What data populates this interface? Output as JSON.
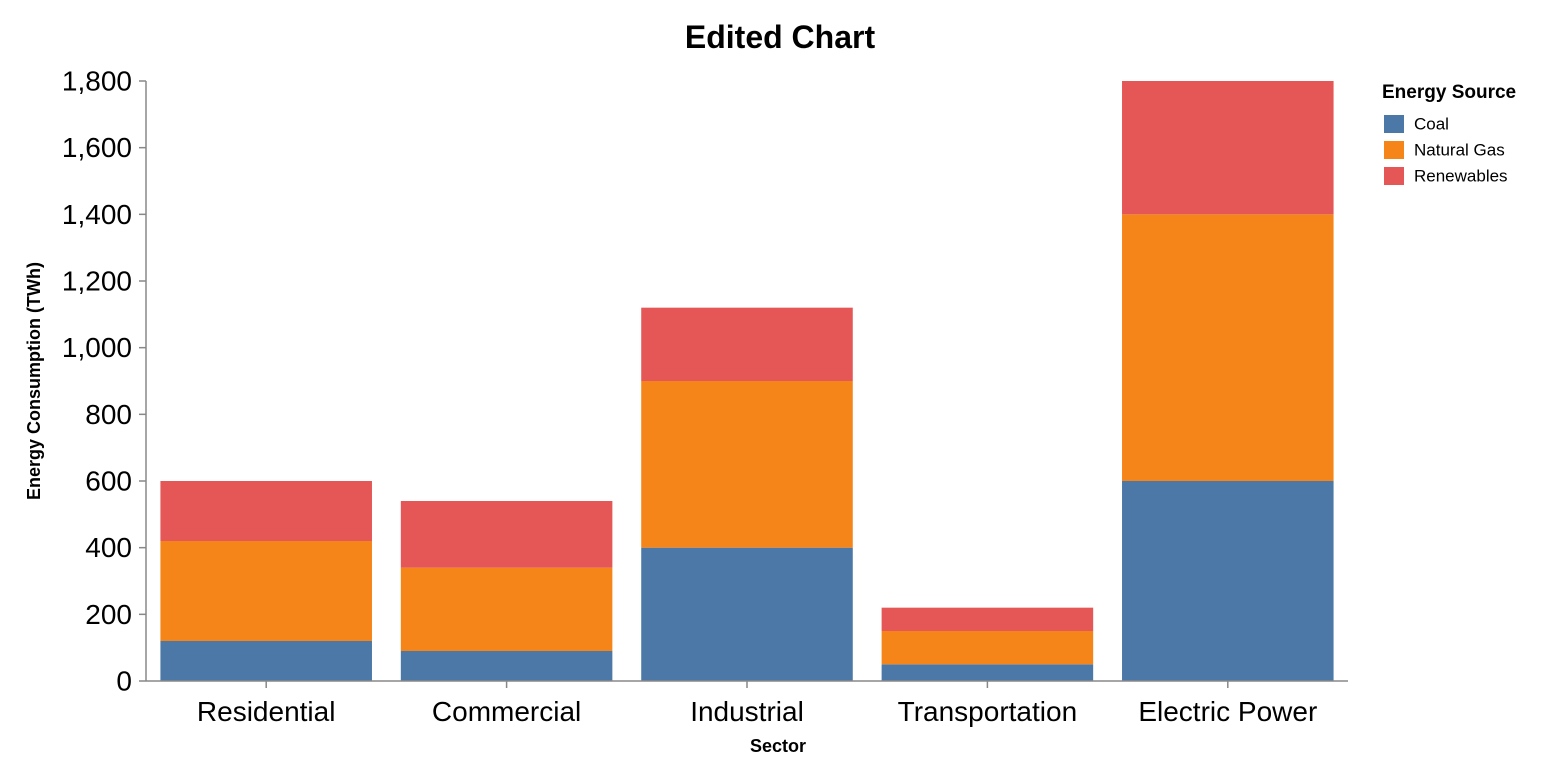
{
  "chart_data": {
    "type": "bar",
    "stacked": true,
    "title": "Edited Chart",
    "xlabel": "Sector",
    "ylabel": "Energy Consumption (TWh)",
    "categories": [
      "Residential",
      "Commercial",
      "Industrial",
      "Transportation",
      "Electric Power"
    ],
    "series": [
      {
        "name": "Coal",
        "color": "#4c78a8",
        "values": [
          120,
          90,
          400,
          50,
          600
        ]
      },
      {
        "name": "Natural Gas",
        "color": "#f58518",
        "values": [
          300,
          250,
          500,
          100,
          800
        ]
      },
      {
        "name": "Renewables",
        "color": "#e45756",
        "values": [
          180,
          200,
          220,
          70,
          400
        ]
      }
    ],
    "ylim": [
      0,
      1800
    ],
    "yticks": [
      0,
      200,
      400,
      600,
      800,
      1000,
      1200,
      1400,
      1600,
      1800
    ],
    "ytick_labels": [
      "0",
      "200",
      "400",
      "600",
      "800",
      "1,000",
      "1,200",
      "1,400",
      "1,600",
      "1,800"
    ],
    "grid": false,
    "legend": {
      "title": "Energy Source",
      "position": "top-right"
    }
  }
}
